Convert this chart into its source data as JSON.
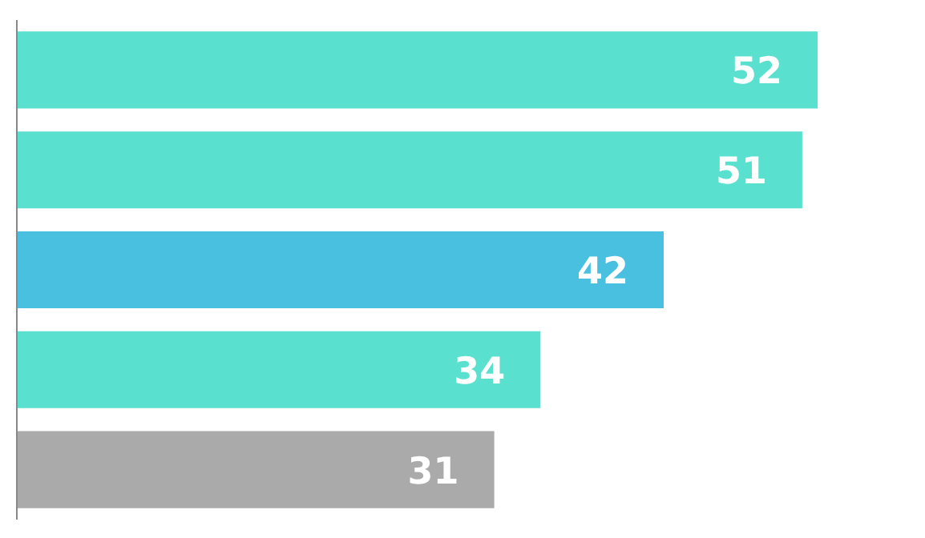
{
  "chart_data": {
    "type": "bar",
    "orientation": "horizontal",
    "categories": [
      null,
      null,
      null,
      null,
      null
    ],
    "values": [
      52,
      51,
      42,
      34,
      31
    ],
    "colors": [
      "#5ae0cf",
      "#5ae0cf",
      "#49c0df",
      "#5ae0cf",
      "#aaaaaa"
    ],
    "data_labels": true,
    "tick_labels": false,
    "grid": false
  }
}
